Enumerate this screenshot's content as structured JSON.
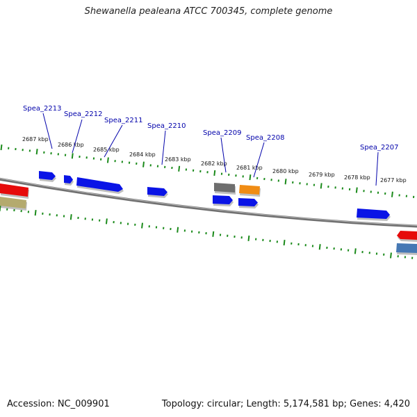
{
  "title": "Shewanella pealeana ATCC 700345, complete genome",
  "footer": {
    "accession": "Accession: NC_009901",
    "summary": "Topology: circular; Length: 5,174,581 bp; Genes: 4,420"
  },
  "colors": {
    "backbone": "#8a8a8a",
    "ticks": "#1a8a1a",
    "gene_label": "#0000aa",
    "forward_gene": "#0a14e6",
    "reverse_gene": "#0a14e6",
    "red_gene": "#e60a0a",
    "grey_gene": "#6e6e6e",
    "orange_gene": "#f08c14",
    "olive_gene": "#b4aa6e",
    "steel_gene": "#4678b4"
  },
  "tick_labels": [
    "2687 kbp",
    "2686 kbp",
    "2685 kbp",
    "2684 kbp",
    "2683 kbp",
    "2682 kbp",
    "2681 kbp",
    "2680 kbp",
    "2679 kbp",
    "2678 kbp",
    "2677 kbp"
  ],
  "gene_labels": [
    "Spea_2213",
    "Spea_2212",
    "Spea_2211",
    "Spea_2210",
    "Spea_2209",
    "Spea_2208",
    "Spea_2207"
  ]
}
